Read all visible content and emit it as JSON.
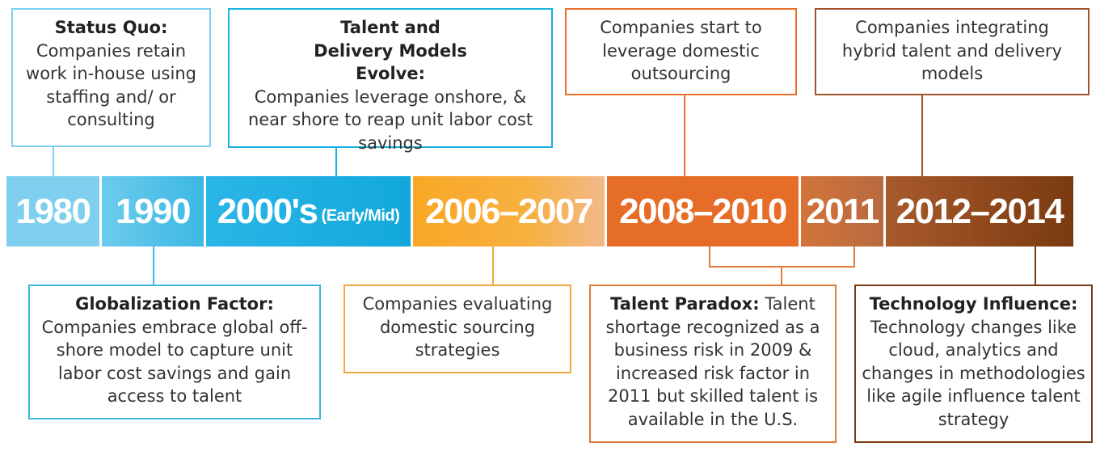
{
  "timeline": [
    {
      "label": "1980"
    },
    {
      "label": "1990"
    },
    {
      "label": "2000's",
      "suffix": "(Early/Mid)"
    },
    {
      "label": "2006–2007"
    },
    {
      "label": "2008–2010"
    },
    {
      "label": "2011"
    },
    {
      "label": "2012–2014"
    }
  ],
  "top_boxes": [
    {
      "title": "Status Quo:",
      "text": "Companies retain work in-house using staffing and/ or consulting"
    },
    {
      "title": "Talent and Delivery Models Evolve:",
      "text": "Companies leverage onshore, & near shore to reap unit labor cost savings"
    },
    {
      "text": "Companies start to leverage domestic outsourcing"
    },
    {
      "text": "Companies integrating hybrid talent and delivery models"
    }
  ],
  "bottom_boxes": [
    {
      "title": "Globalization Factor:",
      "text": "Companies embrace global off-shore model to capture unit labor cost savings and gain access to talent"
    },
    {
      "text": "Companies evaluating domestic sourcing strategies"
    },
    {
      "title": "Talent Paradox:",
      "text": "Talent shortage recognized as a business risk in 2009 & increased risk factor in 2011 but skilled talent is available in the U.S."
    },
    {
      "title": "Technology Influence:",
      "text": "Technology changes like cloud, analytics and changes in methodologies like agile influence talent strategy"
    }
  ]
}
